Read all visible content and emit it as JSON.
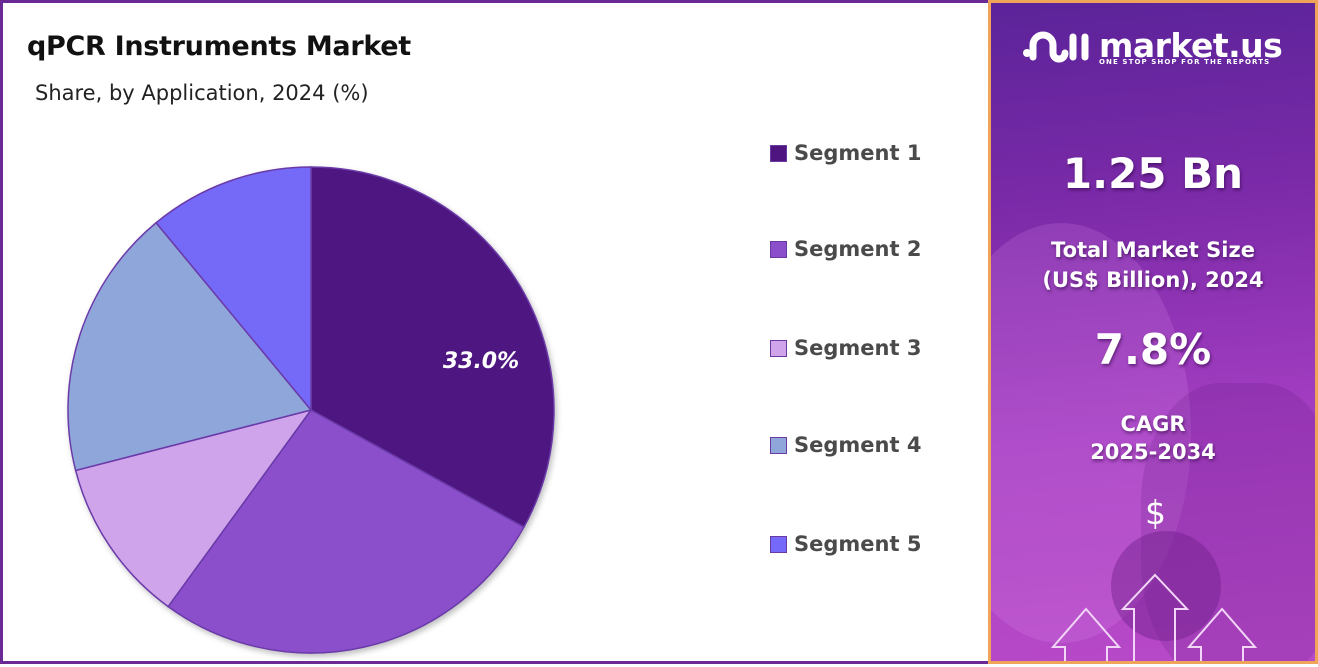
{
  "chart_data": {
    "type": "pie",
    "title": "qPCR Instruments Market",
    "subtitle": "Share, by Application, 2024 (%)",
    "categories": [
      "Segment 1",
      "Segment 2",
      "Segment 3",
      "Segment 4",
      "Segment 5"
    ],
    "values": [
      33.0,
      27.0,
      11.0,
      18.0,
      11.0
    ],
    "colors": [
      "#4e1581",
      "#8b4fcc",
      "#d0a4ea",
      "#8fa6db",
      "#7469f8"
    ],
    "data_labels": [
      {
        "category": "Segment 1",
        "text": "33.0%"
      }
    ],
    "legend_position": "right",
    "start_angle": "12 o'clock, clockwise"
  },
  "header": {
    "title": "qPCR Instruments Market",
    "subtitle": "Share, by Application, 2024 (%)"
  },
  "pie": {
    "label_segment1": "33.0%"
  },
  "legend": {
    "items": [
      {
        "label": "Segment 1",
        "color": "#4e1581"
      },
      {
        "label": "Segment 2",
        "color": "#8b4fcc"
      },
      {
        "label": "Segment 3",
        "color": "#d0a4ea"
      },
      {
        "label": "Segment 4",
        "color": "#8fa6db"
      },
      {
        "label": "Segment 5",
        "color": "#7469f8"
      }
    ]
  },
  "side_panel": {
    "brand": "market.us",
    "tagline": "ONE STOP SHOP FOR THE REPORTS",
    "market_size_value": "1.25 Bn",
    "market_size_label_line1": "Total Market Size",
    "market_size_label_line2": "(US$ Billion), 2024",
    "cagr_value": "7.8%",
    "cagr_label_line1": "CAGR",
    "cagr_label_line2": "2025-2034",
    "dollar_symbol": "$",
    "icon": "growth-arrows-icon"
  },
  "colors": {
    "main_border": "#6a2a93",
    "side_border": "#f0a45a",
    "side_gradient_start": "#5b2399",
    "side_gradient_end": "#b84ac8"
  }
}
